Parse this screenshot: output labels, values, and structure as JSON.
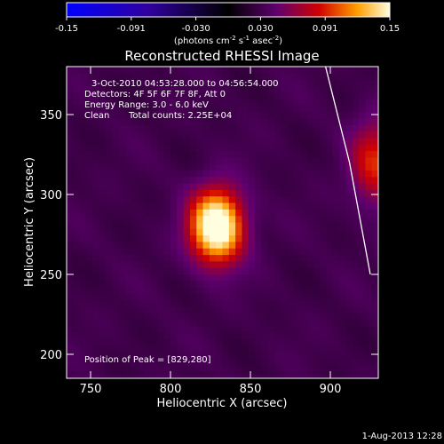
{
  "chart_data": {
    "type": "heatmap",
    "title": "Reconstructed RHESSI Image",
    "colorbar": {
      "ticks": [
        "-0.15",
        "-0.091",
        "-0.030",
        "0.030",
        "0.091",
        "0.15"
      ],
      "range": [
        -0.15,
        0.15
      ],
      "unit_prefix": "(photons cm",
      "unit_exp1": "-2",
      "unit_mid": " s",
      "unit_exp2": "-1",
      "unit_mid2": " asec",
      "unit_exp3": "-2",
      "unit_suffix": ")"
    },
    "xlabel": "Heliocentric X (arcsec)",
    "ylabel": "Heliocentric Y (arcsec)",
    "xlim": [
      735,
      930
    ],
    "ylim": [
      185,
      380
    ],
    "xticks": [
      750,
      800,
      850,
      900
    ],
    "yticks": [
      200,
      250,
      300,
      350
    ],
    "annotations": [
      "3-Oct-2010 04:53:28.000 to 04:56:54.000",
      "Detectors: 4F 5F 6F 7F 8F, Att 0",
      "Energy Range: 3.0 - 6.0 keV",
      "Clean",
      "Total counts: 2.25E+04"
    ],
    "peak_label": "Position of Peak = [829,280]",
    "sources": [
      {
        "x": 829,
        "y": 280,
        "peak": 0.15,
        "sx": 11,
        "sy": 15
      },
      {
        "x": 928,
        "y": 320,
        "peak": 0.06,
        "sx": 10,
        "sy": 18
      }
    ],
    "limb_x": [
      897,
      912,
      925
    ],
    "limb_y": [
      380,
      320,
      250
    ],
    "grid": false
  },
  "footer": {
    "date": "1-Aug-2013 12:28"
  }
}
